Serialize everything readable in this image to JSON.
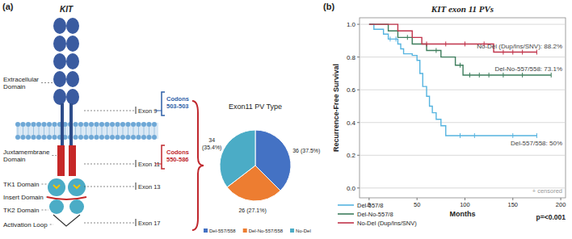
{
  "panel_labels": [
    "(a)",
    "(b)"
  ],
  "diagram": {
    "title": "KIT",
    "domains": [
      {
        "lines": [
          "Extracellular",
          "Domain"
        ]
      },
      {
        "lines": [
          "Juxtamembrane",
          "Domain"
        ]
      },
      {
        "lines": [
          "TK1 Domain"
        ]
      },
      {
        "lines": [
          "Insert Domain"
        ]
      },
      {
        "lines": [
          "TK2 Domain"
        ]
      },
      {
        "lines": [
          "Activation Loop"
        ]
      }
    ],
    "exons": [
      {
        "label": "Exon 9",
        "codons": [
          "Codons",
          "503-503"
        ],
        "color": "#2e5fa8"
      },
      {
        "label": "Exon 11",
        "codons": [
          "Codons",
          "550-586"
        ],
        "color": "#c0272d"
      },
      {
        "label": "Exon 13"
      },
      {
        "label": "Exon 17"
      }
    ]
  },
  "chart_data": [
    {
      "type": "pie",
      "title": "Exon11 PV Type",
      "categories": [
        "Del-557/558",
        "Del-No-557/558",
        "No-Del"
      ],
      "values": [
        36,
        26,
        34
      ],
      "value_labels": [
        "36 (37.5%)",
        "26 (27.1%)",
        "34 (35.4%)"
      ],
      "colors": [
        "#4472c4",
        "#ed7d31",
        "#4bacc6"
      ],
      "data_labels": true,
      "legend": "bottom"
    },
    {
      "type": "line",
      "title": "KIT exon 11 PVs",
      "x_label": "Months",
      "y_label": "Recurrence-Free Survival",
      "xlim": [
        -10,
        205
      ],
      "ylim": [
        -0.06,
        1.04
      ],
      "xticks": [
        0,
        50,
        100,
        150,
        200
      ],
      "yticks": [
        {
          "value": 0,
          "label": "0.0"
        },
        {
          "value": 0.2,
          "label": "0.2"
        },
        {
          "value": 0.4,
          "label": "0.4"
        },
        {
          "value": 0.6,
          "label": "0.6"
        },
        {
          "value": 0.8,
          "label": "0.8"
        },
        {
          "value": 1,
          "label": "1.0"
        }
      ],
      "grid": true,
      "line_style": "step",
      "legend": "bottom-left",
      "censor_label": "+ censored",
      "p_value_label": "p=<0.001",
      "series": [
        {
          "name": "Del-557/8",
          "color": "#56b4e0",
          "annotation": "Del-557/558: 50%",
          "x": [
            0,
            5,
            10,
            15,
            20,
            25,
            30,
            33,
            36,
            40,
            45,
            50,
            53,
            56,
            60,
            63,
            66,
            70,
            75,
            80,
            175
          ],
          "values": [
            1,
            0.97,
            0.97,
            0.94,
            0.91,
            0.91,
            0.88,
            0.85,
            0.82,
            0.82,
            0.81,
            0.78,
            0.7,
            0.62,
            0.56,
            0.5,
            0.46,
            0.42,
            0.38,
            0.32,
            0.32
          ],
          "censored": [
            22,
            28,
            95,
            110,
            150,
            175
          ]
        },
        {
          "name": "Del-No-557/8",
          "color": "#3d7d5c",
          "annotation": "Del-No-557/558: 73.1%",
          "x": [
            0,
            20,
            30,
            45,
            60,
            75,
            90,
            98,
            190
          ],
          "values": [
            1,
            0.96,
            0.92,
            0.88,
            0.84,
            0.8,
            0.75,
            0.69,
            0.69
          ],
          "censored": [
            40,
            70,
            95,
            105,
            115,
            125,
            140,
            160,
            190
          ]
        },
        {
          "name": "No-Del (Dup/Ins/SNV)",
          "color": "#c0334a",
          "annotation": "No-Del (Dup/Ins/SNV): 88.2%",
          "x": [
            0,
            30,
            45,
            55,
            130,
            175
          ],
          "values": [
            1,
            0.96,
            0.92,
            0.88,
            0.83,
            0.83
          ],
          "censored": [
            60,
            80,
            100,
            120,
            140,
            150,
            160,
            175
          ]
        }
      ]
    }
  ]
}
